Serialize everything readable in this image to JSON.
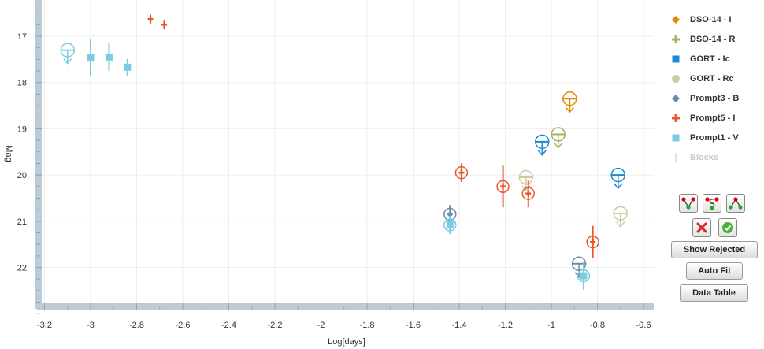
{
  "chart_data": {
    "type": "scatter",
    "xlabel": "Log[days]",
    "ylabel": "Mag",
    "xlim": [
      -3.25,
      -0.57
    ],
    "ylim": [
      23.0,
      16.5
    ],
    "y_inverted": true,
    "x_ticks": [
      "-3.2",
      "-3",
      "-2.8",
      "-2.6",
      "-2.4",
      "-2.2",
      "-2",
      "-1.8",
      "-1.6",
      "-1.4",
      "-1.2",
      "-1",
      "-0.8",
      "-0.6"
    ],
    "y_ticks": [
      "17",
      "18",
      "19",
      "20",
      "21",
      "22"
    ],
    "grid": true,
    "legend_position": "right",
    "series": [
      {
        "name": "DSO-14 - I",
        "color": "#e08a00",
        "marker": "diamond",
        "points": [],
        "upper_limits": [
          {
            "x": -0.92,
            "y": 18.35
          }
        ]
      },
      {
        "name": "DSO-14 - R",
        "color": "#a4b45a",
        "marker": "plus",
        "points": [],
        "upper_limits": [
          {
            "x": -0.97,
            "y": 19.12
          }
        ]
      },
      {
        "name": "GORT - Ic",
        "color": "#1a8ad4",
        "marker": "square",
        "points": [],
        "upper_limits": [
          {
            "x": -1.04,
            "y": 19.28
          },
          {
            "x": -0.71,
            "y": 20.0
          }
        ]
      },
      {
        "name": "GORT - Rc",
        "color": "#cfcaa4",
        "marker": "circle",
        "points": [],
        "upper_limits": [
          {
            "x": -1.11,
            "y": 20.05
          },
          {
            "x": -0.7,
            "y": 20.83
          }
        ]
      },
      {
        "name": "Prompt3 - B",
        "color": "#6e8ba6",
        "marker": "diamond",
        "points": [
          {
            "x": -1.44,
            "y": 20.85,
            "err": 0.2,
            "circled": true
          }
        ],
        "upper_limits": [
          {
            "x": -0.88,
            "y": 21.92
          }
        ]
      },
      {
        "name": "Prompt5 - I",
        "color": "#e8582a",
        "marker": "plus",
        "points": [
          {
            "x": -2.74,
            "y": 16.63,
            "err": 0.1
          },
          {
            "x": -2.68,
            "y": 16.75,
            "err": 0.1
          },
          {
            "x": -1.39,
            "y": 19.95,
            "err": 0.2,
            "circled": true
          },
          {
            "x": -1.21,
            "y": 20.25,
            "err": 0.45,
            "circled": true
          },
          {
            "x": -1.1,
            "y": 20.4,
            "err": 0.3,
            "circled": true
          },
          {
            "x": -0.82,
            "y": 21.45,
            "err": 0.35,
            "circled": true
          }
        ],
        "upper_limits": []
      },
      {
        "name": "Prompt1 - V",
        "color": "#7ccbe0",
        "marker": "square",
        "points": [
          {
            "x": -3.0,
            "y": 17.47,
            "err": 0.4
          },
          {
            "x": -2.92,
            "y": 17.45,
            "err": 0.3
          },
          {
            "x": -2.84,
            "y": 17.67,
            "err": 0.18
          },
          {
            "x": -1.44,
            "y": 21.08,
            "err": 0.2,
            "circled": true
          },
          {
            "x": -0.86,
            "y": 22.18,
            "err": 0.3,
            "circled": true
          }
        ],
        "upper_limits": [
          {
            "x": -3.1,
            "y": 17.3
          }
        ]
      },
      {
        "name": "Blocks",
        "color": "#d8d8c8",
        "marker": "line",
        "hidden": true,
        "points": [],
        "upper_limits": []
      }
    ]
  },
  "toolbar": {
    "show_rejected_label": "Show Rejected",
    "auto_fit_label": "Auto Fit",
    "data_table_label": "Data Table"
  }
}
